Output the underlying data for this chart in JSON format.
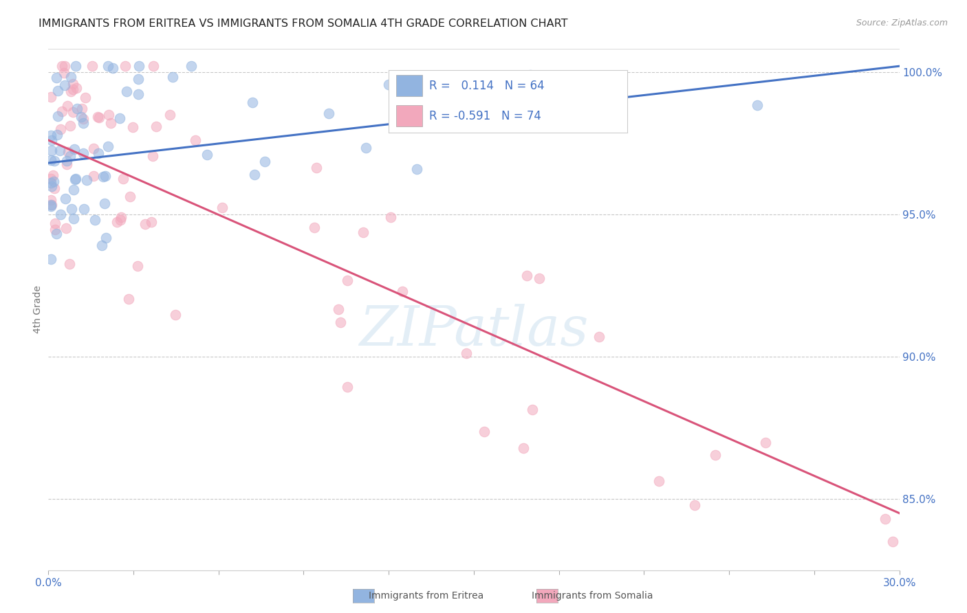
{
  "title": "IMMIGRANTS FROM ERITREA VS IMMIGRANTS FROM SOMALIA 4TH GRADE CORRELATION CHART",
  "source": "Source: ZipAtlas.com",
  "ylabel": "4th Grade",
  "ylabel_right_ticks": [
    "100.0%",
    "95.0%",
    "90.0%",
    "85.0%"
  ],
  "ylabel_right_vals": [
    1.0,
    0.95,
    0.9,
    0.85
  ],
  "watermark": "ZIPatlas",
  "legend": {
    "eritrea_R": "0.114",
    "eritrea_N": "64",
    "somalia_R": "-0.591",
    "somalia_N": "74"
  },
  "eritrea_color": "#92b4e0",
  "somalia_color": "#f2a8bc",
  "eritrea_line_color": "#4472c4",
  "somalia_line_color": "#d9547a",
  "background_color": "#ffffff",
  "grid_color": "#c8c8c8",
  "scatter_alpha": 0.55,
  "scatter_size": 110,
  "xlim": [
    0.0,
    0.3
  ],
  "ylim": [
    0.825,
    1.008
  ],
  "eritrea_trend": [
    0.968,
    1.002
  ],
  "somalia_trend": [
    0.976,
    0.845
  ],
  "n_xticks": 11
}
